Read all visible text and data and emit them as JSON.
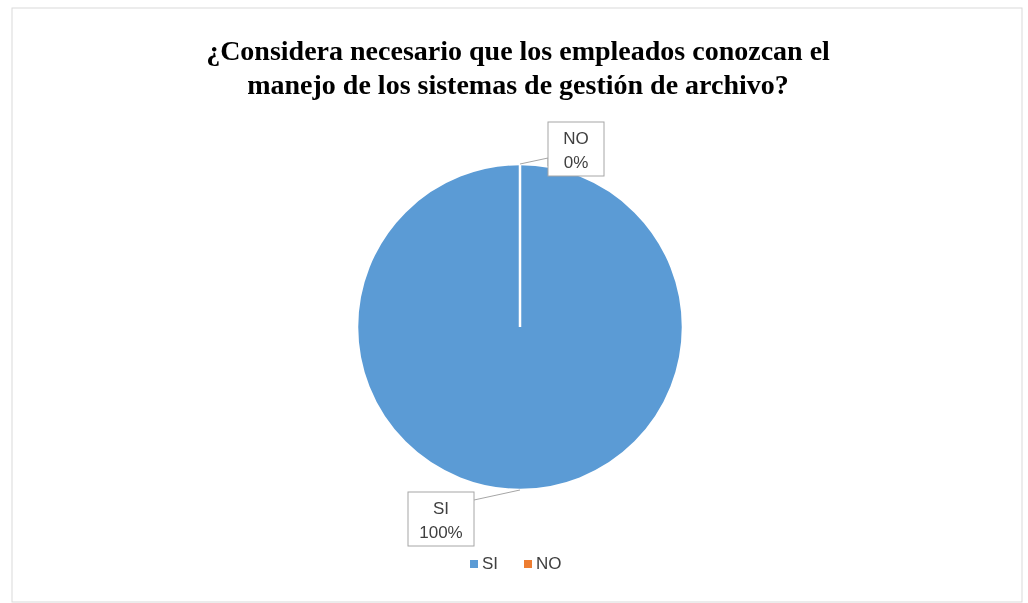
{
  "chart_data": {
    "type": "pie",
    "title": "¿Considera necesario que los empleados conozcan el manejo de los sistemas de gestión de archivo?",
    "categories": [
      "SI",
      "NO"
    ],
    "values": [
      100,
      0
    ],
    "colors": [
      "#5b9bd5",
      "#ed7d31"
    ],
    "value_labels": [
      "100%",
      "0%"
    ],
    "legend": "bottom"
  }
}
